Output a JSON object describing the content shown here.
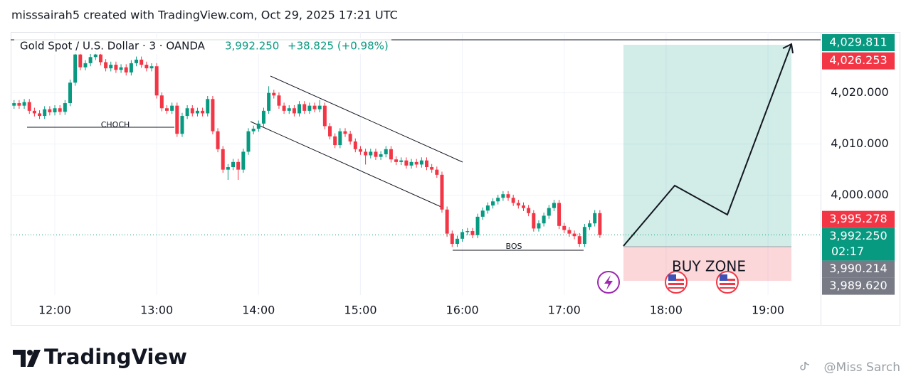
{
  "chart_data": {
    "type": "candlestick",
    "header": "misssairah5 created with TradingView.com, Oct 29, 2025 17:21 UTC",
    "title": "Gold Spot / U.S. Dollar · 3 · OANDA",
    "last_price": "3,992.250",
    "change": "+38.825 (+0.98%)",
    "annotations": [
      "CHOCH",
      "BOS",
      "BUY ZONE"
    ],
    "brand": "TradingView",
    "watermark": "@Miss Sarch",
    "up_color": "#089981",
    "down_color": "#f23645",
    "grid": true,
    "x": [
      "11:36",
      "11:39",
      "11:42",
      "11:45",
      "11:48",
      "11:51",
      "11:54",
      "11:57",
      "12:00",
      "12:03",
      "12:06",
      "12:09",
      "12:12",
      "12:15",
      "12:18",
      "12:21",
      "12:24",
      "12:27",
      "12:30",
      "12:33",
      "12:36",
      "12:39",
      "12:42",
      "12:45",
      "12:48",
      "12:51",
      "12:54",
      "12:57",
      "13:00",
      "13:03",
      "13:06",
      "13:09",
      "13:12",
      "13:15",
      "13:18",
      "13:21",
      "13:24",
      "13:27",
      "13:30",
      "13:33",
      "13:36",
      "13:39",
      "13:42",
      "13:45",
      "13:48",
      "13:51",
      "13:54",
      "13:57",
      "14:00",
      "14:03",
      "14:06",
      "14:09",
      "14:12",
      "14:15",
      "14:18",
      "14:21",
      "14:24",
      "14:27",
      "14:30",
      "14:33",
      "14:36",
      "14:39",
      "14:42",
      "14:45",
      "14:48",
      "14:51",
      "14:54",
      "14:57",
      "15:00",
      "15:03",
      "15:06",
      "15:09",
      "15:12",
      "15:15",
      "15:18",
      "15:21",
      "15:24",
      "15:27",
      "15:30",
      "15:33",
      "15:36",
      "15:39",
      "15:42",
      "15:45",
      "15:48",
      "15:51",
      "15:54",
      "15:57",
      "16:00",
      "16:03",
      "16:06",
      "16:09",
      "16:12",
      "16:15",
      "16:18",
      "16:21",
      "16:24",
      "16:27",
      "16:30",
      "16:33",
      "16:36",
      "16:39",
      "16:42",
      "16:45",
      "16:48",
      "16:51",
      "16:54",
      "16:57",
      "17:00",
      "17:03",
      "17:06",
      "17:09",
      "17:12",
      "17:15",
      "17:18",
      "17:21"
    ],
    "open": [
      4017.5,
      4018.0,
      4017.5,
      4018.2,
      4016.5,
      4016.0,
      4015.5,
      4016.8,
      4016.2,
      4017.0,
      4016.3,
      4018.0,
      4022.0,
      4027.5,
      4025.0,
      4025.8,
      4027.0,
      4027.5,
      4026.0,
      4024.8,
      4025.5,
      4024.5,
      4025.0,
      4024.0,
      4025.8,
      4026.5,
      4025.5,
      4024.8,
      4025.2,
      4019.5,
      4017.0,
      4016.5,
      4017.5,
      4012.0,
      4015.5,
      4017.0,
      4016.0,
      4016.5,
      4016.0,
      4018.8,
      4012.5,
      4009.0,
      4005.0,
      4005.5,
      4006.5,
      4005.0,
      4008.5,
      4012.5,
      4013.0,
      4014.0,
      4016.5,
      4020.0,
      4019.5,
      4017.5,
      4016.5,
      4017.0,
      4016.0,
      4017.8,
      4016.5,
      4017.5,
      4016.8,
      4017.5,
      4013.5,
      4011.5,
      4009.8,
      4012.5,
      4012.0,
      4010.5,
      4009.0,
      4008.5,
      4007.8,
      4008.5,
      4007.5,
      4008.0,
      4009.0,
      4007.0,
      4006.5,
      4006.8,
      4005.8,
      4006.5,
      4006.0,
      4006.8,
      4005.5,
      4005.0,
      4004.0,
      3997.2,
      3992.5,
      3990.5,
      3991.5,
      3992.8,
      3993.0,
      3992.2,
      3995.8,
      3997.0,
      3998.0,
      3998.8,
      3999.5,
      4000.2,
      3999.5,
      3998.5,
      3998.0,
      3997.5,
      3996.5,
      3993.5,
      3994.5,
      3996.0,
      3997.5,
      3998.5,
      3994.0,
      3993.2,
      3992.5,
      3992.0,
      3990.5,
      3993.8,
      3994.5,
      3996.5
    ],
    "high": [
      4018.6,
      4018.6,
      4018.8,
      4018.8,
      4017.1,
      4016.6,
      4017.4,
      4017.4,
      4017.6,
      4017.6,
      4018.6,
      4022.6,
      4028.1,
      4028.1,
      4026.4,
      4027.6,
      4028.1,
      4028.1,
      4026.6,
      4026.1,
      4026.1,
      4025.6,
      4025.6,
      4026.4,
      4027.1,
      4027.1,
      4026.1,
      4025.8,
      4025.8,
      4020.1,
      4017.6,
      4018.1,
      4018.1,
      4016.1,
      4017.6,
      4017.6,
      4017.1,
      4017.1,
      4019.4,
      4019.4,
      4013.1,
      4009.6,
      4006.1,
      4007.1,
      4007.1,
      4009.1,
      4013.1,
      4013.6,
      4014.6,
      4017.1,
      4021.3,
      4020.6,
      4020.1,
      4018.1,
      4017.6,
      4017.6,
      4018.4,
      4018.4,
      4018.1,
      4018.1,
      4018.6,
      4018.1,
      4014.1,
      4012.1,
      4013.1,
      4013.1,
      4012.6,
      4011.1,
      4009.6,
      4009.1,
      4009.1,
      4009.1,
      4008.6,
      4009.6,
      4009.6,
      4007.6,
      4007.4,
      4007.4,
      4007.1,
      4007.1,
      4007.4,
      4007.4,
      4006.1,
      4005.6,
      4004.6,
      3997.8,
      3993.1,
      3992.1,
      3993.4,
      3993.6,
      3993.6,
      3996.4,
      3997.6,
      3998.6,
      3999.4,
      4000.1,
      4000.8,
      4000.8,
      4000.1,
      3999.1,
      3998.6,
      3998.1,
      3997.1,
      3995.1,
      3996.6,
      3998.1,
      3999.1,
      3999.1,
      3994.6,
      3993.8,
      3993.1,
      3992.6,
      3994.4,
      3995.1,
      3997.1,
      3997.1
    ],
    "low": [
      4016.9,
      4016.9,
      4016.9,
      4015.9,
      4015.4,
      4014.9,
      4014.9,
      4015.6,
      4015.6,
      4015.7,
      4015.7,
      4017.4,
      4021.4,
      4024.4,
      4024.4,
      4025.2,
      4026.4,
      4025.4,
      4024.2,
      4024.2,
      4023.9,
      4023.9,
      4023.4,
      4023.4,
      4025.2,
      4024.9,
      4024.2,
      4024.2,
      4018.9,
      4016.4,
      4015.9,
      4015.9,
      4011.4,
      4011.4,
      4014.9,
      4015.4,
      4015.4,
      4015.4,
      4015.4,
      4011.9,
      4008.4,
      4004.4,
      4003.0,
      4004.9,
      4003.0,
      4004.4,
      4007.9,
      4011.9,
      4012.4,
      4013.4,
      4015.9,
      4018.9,
      4016.9,
      4015.9,
      4015.9,
      4015.4,
      4015.4,
      4015.9,
      4015.9,
      4016.2,
      4016.2,
      4012.9,
      4010.9,
      4009.2,
      4009.2,
      4011.4,
      4009.9,
      4008.4,
      4007.9,
      4006.0,
      4007.2,
      4006.9,
      4006.9,
      4007.4,
      4006.4,
      4005.9,
      4005.9,
      4005.2,
      4005.2,
      4005.4,
      4005.4,
      4004.9,
      4004.4,
      4003.4,
      3996.6,
      3991.9,
      3989.9,
      3989.9,
      3990.9,
      3992.2,
      3991.6,
      3991.6,
      3995.2,
      3996.4,
      3997.4,
      3998.2,
      3998.9,
      3998.9,
      3997.9,
      3997.4,
      3996.9,
      3995.9,
      3992.9,
      3992.9,
      3993.9,
      3995.4,
      3996.9,
      3993.4,
      3992.6,
      3991.9,
      3991.4,
      3989.9,
      3989.9,
      3993.2,
      3993.9,
      3991.65
    ],
    "close": [
      4018.0,
      4017.5,
      4018.2,
      4016.5,
      4016.0,
      4015.5,
      4016.8,
      4016.2,
      4017.0,
      4016.3,
      4018.0,
      4022.0,
      4027.5,
      4025.0,
      4025.8,
      4027.0,
      4027.5,
      4026.0,
      4024.8,
      4025.5,
      4024.5,
      4025.0,
      4024.0,
      4025.8,
      4026.5,
      4025.5,
      4024.8,
      4025.2,
      4019.5,
      4017.0,
      4016.5,
      4017.5,
      4012.0,
      4015.5,
      4017.0,
      4016.0,
      4016.5,
      4016.0,
      4018.8,
      4012.5,
      4009.0,
      4005.0,
      4005.5,
      4006.5,
      4005.0,
      4008.5,
      4012.5,
      4013.0,
      4014.0,
      4016.5,
      4020.0,
      4019.5,
      4017.5,
      4016.5,
      4017.0,
      4016.0,
      4017.8,
      4016.5,
      4017.5,
      4016.8,
      4017.5,
      4013.5,
      4011.5,
      4009.8,
      4012.5,
      4012.0,
      4010.5,
      4009.0,
      4008.5,
      4007.8,
      4008.5,
      4007.5,
      4008.0,
      4009.0,
      4007.0,
      4006.5,
      4006.8,
      4005.8,
      4006.5,
      4006.0,
      4006.8,
      4005.5,
      4005.0,
      4004.0,
      3997.2,
      3992.5,
      3990.5,
      3991.5,
      3992.8,
      3993.0,
      3992.2,
      3995.8,
      3997.0,
      3998.0,
      3998.8,
      3999.5,
      4000.2,
      3999.5,
      3998.5,
      3998.0,
      3997.5,
      3996.5,
      3993.5,
      3994.5,
      3996.0,
      3997.5,
      3998.5,
      3994.0,
      3993.2,
      3992.5,
      3992.0,
      3990.5,
      3993.8,
      3994.5,
      3996.5,
      3992.25
    ],
    "xlim": [
      "11:34",
      "19:31"
    ],
    "xticks": [
      "12:00",
      "13:00",
      "14:00",
      "15:00",
      "16:00",
      "17:00",
      "18:00",
      "19:00"
    ],
    "ylim": [
      3980.5,
      4031.9
    ],
    "yticks": [
      {
        "value": 4000,
        "label": "4,000.000"
      },
      {
        "value": 4010,
        "label": "4,010.000"
      },
      {
        "value": 4020,
        "label": "4,020.000"
      }
    ],
    "price_labels": [
      {
        "value": 4029.811,
        "label": "4,029.811",
        "color": "#089981"
      },
      {
        "value": 4026.253,
        "label": "4,026.253",
        "color": "#f23645"
      },
      {
        "value": 3995.278,
        "label": "3,995.278",
        "color": "#f23645"
      },
      {
        "value": 3992.25,
        "label": "3,992.250",
        "color": "#089981"
      },
      {
        "value": 3990.214,
        "label": "3,990.214",
        "color": "#787b86"
      },
      {
        "value": 3989.62,
        "label": "3,989.620",
        "color": "#787b86"
      }
    ],
    "countdown": "02:17"
  }
}
